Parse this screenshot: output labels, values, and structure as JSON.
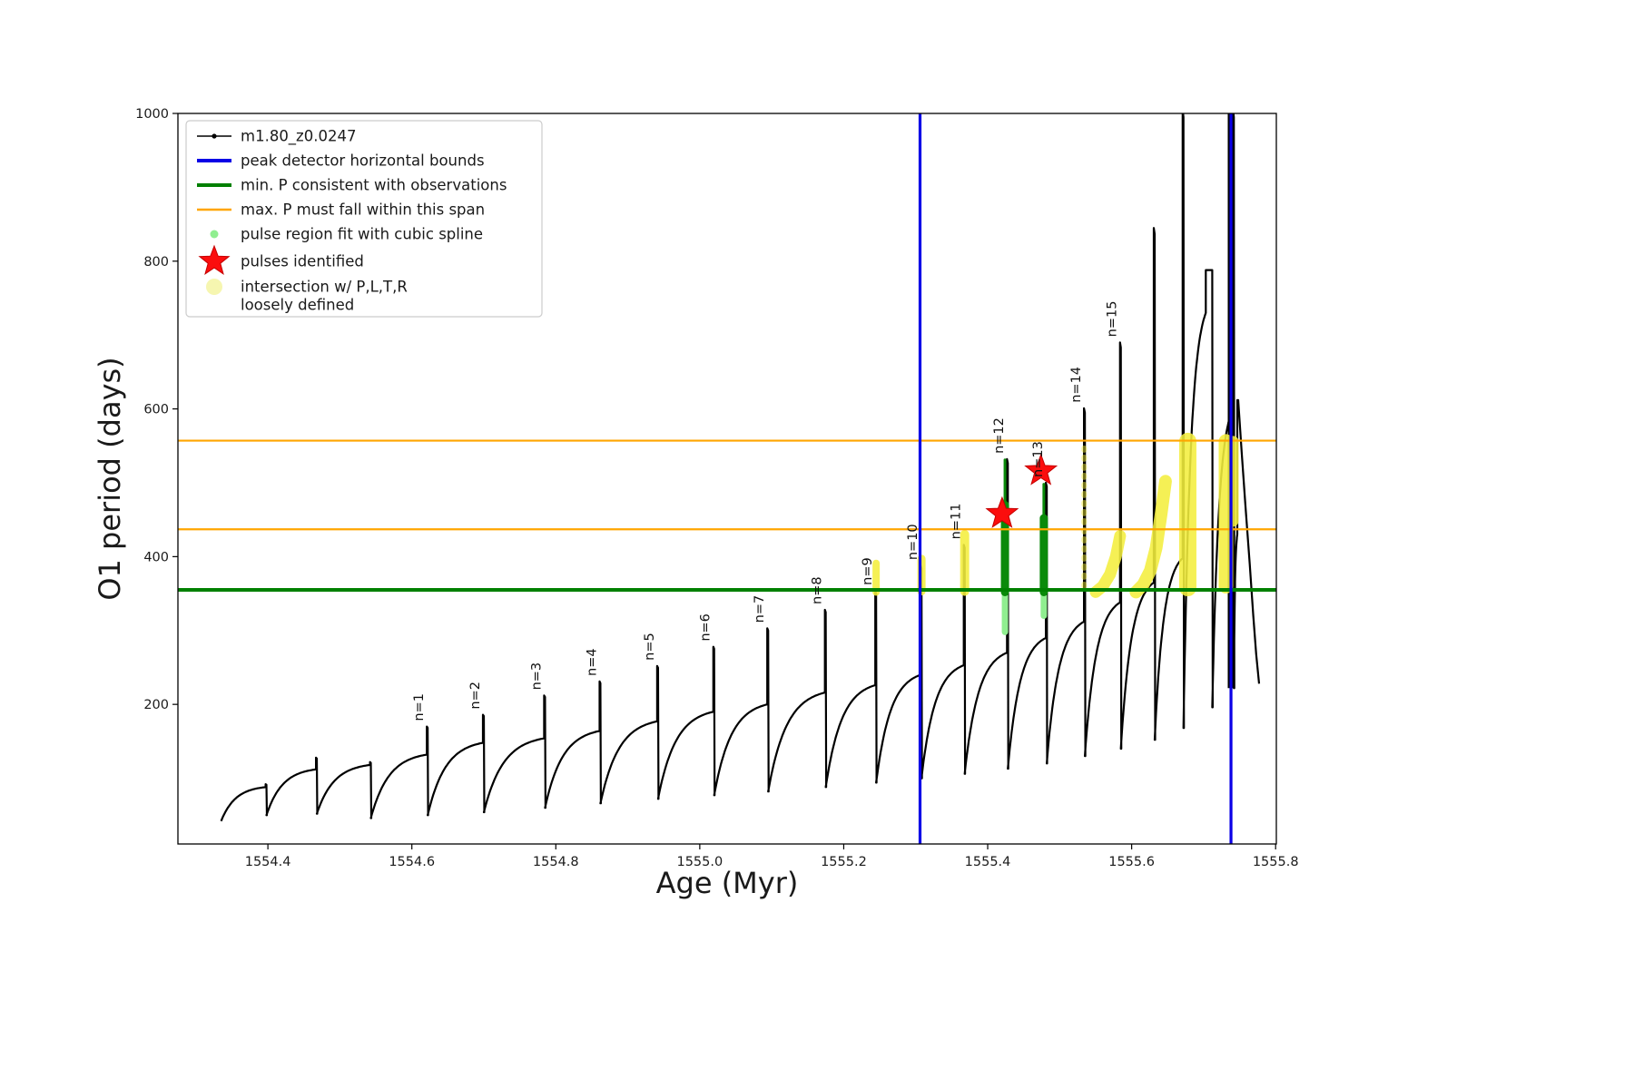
{
  "chart_data": {
    "type": "line",
    "title": "",
    "xlabel": "Age (Myr)",
    "ylabel": "O1 period (days)",
    "xlim": [
      1554.275,
      1555.801
    ],
    "ylim": [
      11,
      1000
    ],
    "xticks": [
      1554.4,
      1554.6,
      1554.8,
      1555.0,
      1555.2,
      1555.4,
      1555.6,
      1555.8
    ],
    "yticks": [
      200,
      400,
      600,
      800,
      1000
    ],
    "grid": false,
    "legend_position": "upper-left",
    "series_label": "m1.80_z0.0247",
    "colors": {
      "series": "#000000",
      "peak_bounds": "#0a00e6",
      "min_p": "#008000",
      "max_p_span": "#ffa500",
      "spline_region": "#0a8a0a",
      "spline_region_light": "#90ee90",
      "pulse_star": "#fb0d0d",
      "intersection": "#f4ef3e",
      "intersection_legend": "#f6f6b0",
      "text": "#1a1a1a"
    },
    "peak_detector_bounds_x": [
      1555.306,
      1555.738
    ],
    "min_p_line_y": 355,
    "max_p_span_y": [
      437,
      557
    ],
    "teeth": [
      {
        "s": 1554.335,
        "e": 1554.398,
        "y0": 42,
        "y1": 88,
        "p": 92,
        "label": null
      },
      {
        "s": 1554.398,
        "e": 1554.468,
        "y0": 50,
        "y1": 112,
        "p": 128,
        "label": null
      },
      {
        "s": 1554.468,
        "e": 1554.543,
        "y0": 52,
        "y1": 118,
        "p": 122,
        "label": null
      },
      {
        "s": 1554.543,
        "e": 1554.622,
        "y0": 46,
        "y1": 132,
        "p": 170,
        "label": "n=1"
      },
      {
        "s": 1554.622,
        "e": 1554.7,
        "y0": 50,
        "y1": 148,
        "p": 186,
        "label": "n=2"
      },
      {
        "s": 1554.7,
        "e": 1554.785,
        "y0": 54,
        "y1": 154,
        "p": 212,
        "label": "n=3"
      },
      {
        "s": 1554.785,
        "e": 1554.862,
        "y0": 60,
        "y1": 164,
        "p": 231,
        "label": "n=4"
      },
      {
        "s": 1554.862,
        "e": 1554.942,
        "y0": 66,
        "y1": 177,
        "p": 252,
        "label": "n=5"
      },
      {
        "s": 1554.942,
        "e": 1555.02,
        "y0": 72,
        "y1": 190,
        "p": 278,
        "label": "n=6"
      },
      {
        "s": 1555.02,
        "e": 1555.095,
        "y0": 77,
        "y1": 200,
        "p": 303,
        "label": "n=7"
      },
      {
        "s": 1555.095,
        "e": 1555.175,
        "y0": 82,
        "y1": 216,
        "p": 328,
        "label": "n=8"
      },
      {
        "s": 1555.175,
        "e": 1555.245,
        "y0": 88,
        "y1": 226,
        "p": 354,
        "label": "n=9"
      },
      {
        "s": 1555.245,
        "e": 1555.308,
        "y0": 94,
        "y1": 240,
        "p": 388,
        "label": "n=10"
      },
      {
        "s": 1555.308,
        "e": 1555.368,
        "y0": 100,
        "y1": 253,
        "p": 416,
        "label": "n=11"
      },
      {
        "s": 1555.368,
        "e": 1555.428,
        "y0": 106,
        "y1": 270,
        "p": 532,
        "label": "n=12"
      },
      {
        "s": 1555.428,
        "e": 1555.482,
        "y0": 113,
        "y1": 290,
        "p": 500,
        "label": "n=13"
      },
      {
        "s": 1555.482,
        "e": 1555.535,
        "y0": 120,
        "y1": 312,
        "p": 601,
        "label": "n=14"
      },
      {
        "s": 1555.535,
        "e": 1555.585,
        "y0": 130,
        "y1": 338,
        "p": 690,
        "label": "n=15"
      },
      {
        "s": 1555.585,
        "e": 1555.632,
        "y0": 140,
        "y1": 365,
        "p": 845,
        "label": null
      },
      {
        "s": 1555.632,
        "e": 1555.672,
        "y0": 152,
        "y1": 398,
        "p": 1005,
        "label": null
      },
      {
        "s": 1555.672,
        "e": 1555.712,
        "y0": 168,
        "y1": 730,
        "p": 788,
        "label": null,
        "sw": 0.009
      },
      {
        "s": 1555.712,
        "e": 1555.742,
        "y0": 196,
        "y1": 600,
        "p": 1005,
        "label": null,
        "band": true
      },
      {
        "s": 1555.742,
        "e": 1555.748,
        "y0": 222,
        "y1": 430,
        "p": 612,
        "label": null
      }
    ],
    "tail": [
      [
        1555.748,
        612
      ],
      [
        1555.753,
        540
      ],
      [
        1555.758,
        470
      ],
      [
        1555.764,
        390
      ],
      [
        1555.769,
        320
      ],
      [
        1555.773,
        268
      ],
      [
        1555.777,
        228
      ]
    ],
    "band_bottom": 222,
    "yellow_segments": [
      {
        "x": 1555.245,
        "a": 352,
        "b": 391,
        "w": 8,
        "faint": false
      },
      {
        "x": 1555.308,
        "a": 353,
        "b": 397,
        "w": 9,
        "faint": false
      },
      {
        "x": 1555.368,
        "a": 353,
        "b": 430,
        "w": 10,
        "faint": false
      },
      {
        "x": 1555.534,
        "a": 360,
        "b": 553,
        "w": 6,
        "faint": true
      }
    ],
    "yellow_arcs": [
      {
        "pts": [
          [
            1555.55,
            352
          ],
          [
            1555.56,
            360
          ],
          [
            1555.57,
            376
          ],
          [
            1555.578,
            400
          ],
          [
            1555.584,
            428
          ]
        ],
        "w": 13
      },
      {
        "pts": [
          [
            1555.606,
            352
          ],
          [
            1555.616,
            362
          ],
          [
            1555.626,
            381
          ],
          [
            1555.634,
            412
          ],
          [
            1555.641,
            458
          ],
          [
            1555.647,
            502
          ]
        ],
        "w": 14
      }
    ],
    "yellow_bands": [
      {
        "x": 1555.678,
        "a": 358,
        "b": 556,
        "w": 19
      },
      {
        "x": 1555.731,
        "a": 360,
        "b": 556,
        "w": 16
      },
      {
        "x": 1555.741,
        "a": 448,
        "b": 556,
        "w": 12
      }
    ],
    "light_green_segments": [
      {
        "x": 1555.424,
        "a": 298,
        "b": 352,
        "w": 7
      },
      {
        "x": 1555.478,
        "a": 320,
        "b": 352,
        "w": 7
      }
    ],
    "green_spline_segments": [
      {
        "x": 1555.424,
        "a": 352,
        "b": 470,
        "w": 9
      },
      {
        "x": 1555.424,
        "a": 470,
        "b": 531,
        "w": 3
      },
      {
        "x": 1555.478,
        "a": 352,
        "b": 452,
        "w": 9
      },
      {
        "x": 1555.478,
        "a": 452,
        "b": 498,
        "w": 3
      }
    ],
    "pulse_stars": [
      {
        "x": 1555.42,
        "y": 458
      },
      {
        "x": 1555.474,
        "y": 516
      }
    ],
    "legend": [
      {
        "marker": "line-dot",
        "color": "#000000",
        "lw": 1.5,
        "label": "m1.80_z0.0247"
      },
      {
        "marker": "line",
        "color": "#0a00e6",
        "lw": 4,
        "label": "peak detector horizontal bounds"
      },
      {
        "marker": "line",
        "color": "#008000",
        "lw": 4,
        "label": "min. P consistent with observations"
      },
      {
        "marker": "line",
        "color": "#ffa500",
        "lw": 2.5,
        "label": "max. P must fall within this span"
      },
      {
        "marker": "dot",
        "color": "#90ee90",
        "r": 4.5,
        "label": "pulse region fit with cubic spline"
      },
      {
        "marker": "star",
        "color": "#fb0d0d",
        "r": 13,
        "label": "pulses identified"
      },
      {
        "marker": "dot",
        "color": "#f6f6b0",
        "r": 9,
        "label": "intersection w/ P,L,T,R",
        "label2": "loosely defined"
      }
    ]
  }
}
